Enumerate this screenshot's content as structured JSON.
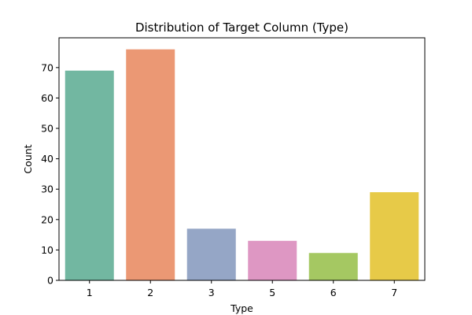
{
  "chart_data": {
    "type": "bar",
    "title": "Distribution of Target Column (Type)",
    "xlabel": "Type",
    "ylabel": "Count",
    "categories": [
      "1",
      "2",
      "3",
      "5",
      "6",
      "7"
    ],
    "values": [
      69,
      76,
      17,
      13,
      9,
      29
    ],
    "colors": [
      "#72b7a1",
      "#eb9874",
      "#95a6c6",
      "#de97c3",
      "#a5c862",
      "#e7ca48"
    ],
    "ylim": [
      0,
      79.8
    ],
    "yticks": [
      0,
      10,
      20,
      30,
      40,
      50,
      60,
      70
    ],
    "grid": false,
    "legend": false
  }
}
